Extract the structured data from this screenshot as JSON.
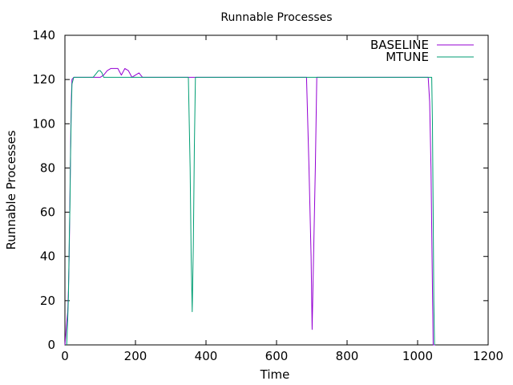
{
  "chart_data": {
    "type": "line",
    "title": "Runnable Processes",
    "xlabel": "Time",
    "ylabel": "Runnable Processes",
    "xlim": [
      0,
      1200
    ],
    "ylim": [
      0,
      140
    ],
    "xticks": [
      0,
      200,
      400,
      600,
      800,
      1000,
      1200
    ],
    "yticks": [
      0,
      20,
      40,
      60,
      80,
      100,
      120,
      140
    ],
    "grid": false,
    "legend_position": "top-right",
    "series": [
      {
        "name": "BASELINE",
        "color": "#9400d3",
        "points": [
          [
            0,
            0
          ],
          [
            5,
            10
          ],
          [
            8,
            15
          ],
          [
            10,
            25
          ],
          [
            12,
            40
          ],
          [
            14,
            65
          ],
          [
            16,
            88
          ],
          [
            18,
            110
          ],
          [
            20,
            120
          ],
          [
            25,
            121
          ],
          [
            35,
            121
          ],
          [
            45,
            121
          ],
          [
            60,
            121
          ],
          [
            80,
            121
          ],
          [
            100,
            121
          ],
          [
            110,
            122
          ],
          [
            120,
            124
          ],
          [
            130,
            125
          ],
          [
            140,
            125
          ],
          [
            150,
            125
          ],
          [
            160,
            122
          ],
          [
            170,
            125
          ],
          [
            180,
            124
          ],
          [
            190,
            121
          ],
          [
            200,
            122
          ],
          [
            210,
            123
          ],
          [
            220,
            121
          ],
          [
            230,
            121
          ],
          [
            240,
            121
          ],
          [
            250,
            121
          ],
          [
            300,
            121
          ],
          [
            400,
            121
          ],
          [
            500,
            121
          ],
          [
            530,
            121
          ],
          [
            540,
            121
          ],
          [
            600,
            121
          ],
          [
            685,
            121
          ],
          [
            692,
            80
          ],
          [
            698,
            40
          ],
          [
            701,
            7
          ],
          [
            705,
            40
          ],
          [
            710,
            80
          ],
          [
            714,
            121
          ],
          [
            800,
            121
          ],
          [
            900,
            121
          ],
          [
            1000,
            121
          ],
          [
            1030,
            121
          ],
          [
            1034,
            110
          ],
          [
            1038,
            80
          ],
          [
            1041,
            40
          ],
          [
            1044,
            0
          ],
          [
            1050,
            0
          ]
        ]
      },
      {
        "name": "MTUNE",
        "color": "#009e73",
        "points": [
          [
            5,
            0
          ],
          [
            8,
            12
          ],
          [
            10,
            22
          ],
          [
            12,
            45
          ],
          [
            14,
            62
          ],
          [
            16,
            85
          ],
          [
            18,
            105
          ],
          [
            20,
            118
          ],
          [
            25,
            121
          ],
          [
            30,
            121
          ],
          [
            40,
            121
          ],
          [
            60,
            121
          ],
          [
            80,
            121
          ],
          [
            90,
            123
          ],
          [
            95,
            124
          ],
          [
            100,
            124
          ],
          [
            105,
            123
          ],
          [
            110,
            121
          ],
          [
            130,
            121
          ],
          [
            150,
            121
          ],
          [
            170,
            121
          ],
          [
            190,
            121
          ],
          [
            200,
            121
          ],
          [
            215,
            121
          ],
          [
            225,
            121
          ],
          [
            250,
            121
          ],
          [
            300,
            121
          ],
          [
            350,
            121
          ],
          [
            355,
            80
          ],
          [
            358,
            40
          ],
          [
            361,
            15
          ],
          [
            364,
            45
          ],
          [
            367,
            90
          ],
          [
            370,
            121
          ],
          [
            400,
            121
          ],
          [
            500,
            121
          ],
          [
            600,
            121
          ],
          [
            700,
            121
          ],
          [
            800,
            121
          ],
          [
            900,
            121
          ],
          [
            1000,
            121
          ],
          [
            1040,
            121
          ],
          [
            1042,
            100
          ],
          [
            1044,
            60
          ],
          [
            1046,
            20
          ],
          [
            1048,
            0
          ]
        ]
      }
    ]
  }
}
